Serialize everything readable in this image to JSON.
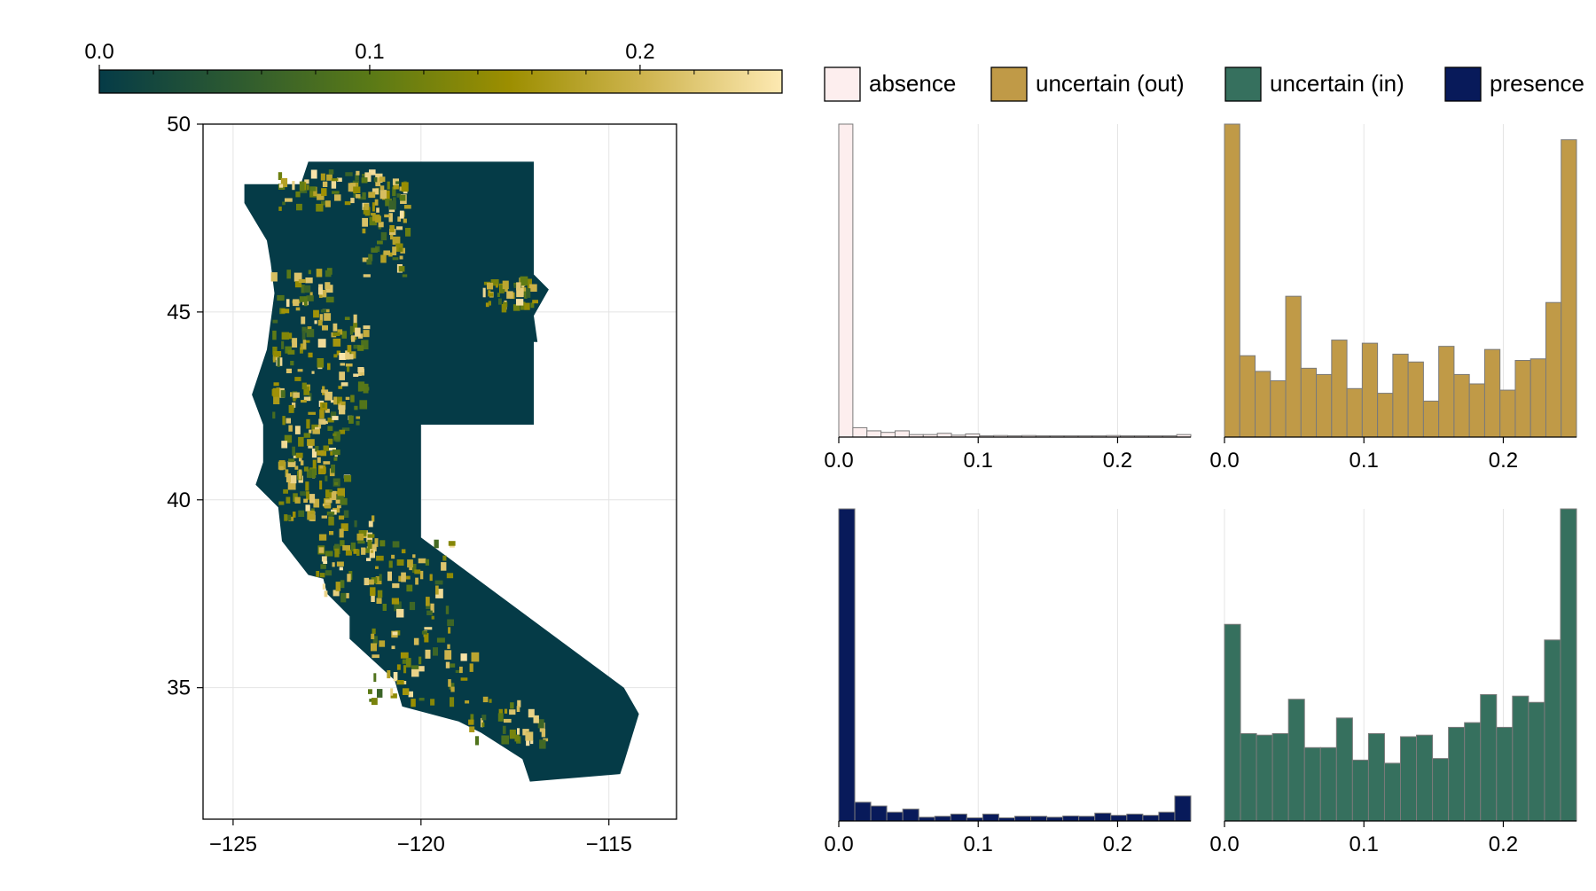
{
  "colorbar": {
    "ticks": [
      0.0,
      0.1,
      0.2
    ],
    "tick_labels": [
      "0.0",
      "0.1",
      "0.2"
    ],
    "range": [
      0.0,
      0.2525
    ],
    "colors": [
      "#053b47",
      "#2d5a30",
      "#5b7a16",
      "#9c8e00",
      "#cfb550",
      "#fde9b2"
    ]
  },
  "legend": [
    {
      "label": "absence",
      "color": "#fdeeee"
    },
    {
      "label": "uncertain (out)",
      "color": "#c09a47"
    },
    {
      "label": "uncertain (in)",
      "color": "#36705e"
    },
    {
      "label": "presence",
      "color": "#081a5a"
    }
  ],
  "chart_data": [
    {
      "type": "heatmap",
      "panel": "map",
      "x_ticks": [
        -125,
        -120,
        -115
      ],
      "x_tick_labels": [
        "−125",
        "−120",
        "−115"
      ],
      "y_ticks": [
        35,
        40,
        45,
        50
      ],
      "y_tick_labels": [
        "35",
        "40",
        "45",
        "50"
      ],
      "xlim": [
        -125.8,
        -113.2
      ],
      "ylim": [
        31.5,
        50
      ],
      "grid": true,
      "value_range": [
        0.0,
        0.2525
      ],
      "regions": [
        "Washington",
        "Oregon",
        "California"
      ]
    },
    {
      "type": "bar",
      "series_label": "absence",
      "color": "#fdeeee",
      "bin_edges_range": [
        0.0,
        0.2525
      ],
      "x_ticks": [
        0.0,
        0.1,
        0.2
      ],
      "x_tick_labels": [
        "0.0",
        "0.1",
        "0.2"
      ],
      "values": [
        1.0,
        0.03,
        0.02,
        0.015,
        0.02,
        0.008,
        0.008,
        0.012,
        0.006,
        0.01,
        0.004,
        0.005,
        0.004,
        0.005,
        0.004,
        0.004,
        0.004,
        0.004,
        0.004,
        0.005,
        0.004,
        0.004,
        0.004,
        0.004,
        0.008
      ]
    },
    {
      "type": "bar",
      "series_label": "uncertain (out)",
      "color": "#c09a47",
      "bin_edges_range": [
        0.0,
        0.2525
      ],
      "x_ticks": [
        0.0,
        0.1,
        0.2
      ],
      "x_tick_labels": [
        "0.0",
        "0.1",
        "0.2"
      ],
      "values": [
        1.0,
        0.26,
        0.21,
        0.18,
        0.45,
        0.22,
        0.2,
        0.31,
        0.155,
        0.3,
        0.14,
        0.265,
        0.24,
        0.115,
        0.29,
        0.2,
        0.17,
        0.28,
        0.15,
        0.245,
        0.25,
        0.43,
        0.95
      ]
    },
    {
      "type": "bar",
      "series_label": "presence",
      "color": "#081a5a",
      "bin_edges_range": [
        0.0,
        0.2525
      ],
      "x_ticks": [
        0.0,
        0.1,
        0.2
      ],
      "x_tick_labels": [
        "0.0",
        "0.1",
        "0.2"
      ],
      "values": [
        1.0,
        0.06,
        0.048,
        0.028,
        0.038,
        0.012,
        0.015,
        0.022,
        0.01,
        0.022,
        0.01,
        0.015,
        0.015,
        0.012,
        0.016,
        0.015,
        0.025,
        0.018,
        0.022,
        0.018,
        0.028,
        0.08
      ]
    },
    {
      "type": "bar",
      "series_label": "uncertain (in)",
      "color": "#36705e",
      "bin_edges_range": [
        0.0,
        0.2525
      ],
      "x_ticks": [
        0.0,
        0.1,
        0.2
      ],
      "x_tick_labels": [
        "0.0",
        "0.1",
        "0.2"
      ],
      "values": [
        0.63,
        0.28,
        0.275,
        0.28,
        0.39,
        0.235,
        0.235,
        0.33,
        0.195,
        0.28,
        0.185,
        0.27,
        0.275,
        0.2,
        0.3,
        0.315,
        0.405,
        0.3,
        0.4,
        0.38,
        0.58,
        1.0
      ]
    }
  ]
}
